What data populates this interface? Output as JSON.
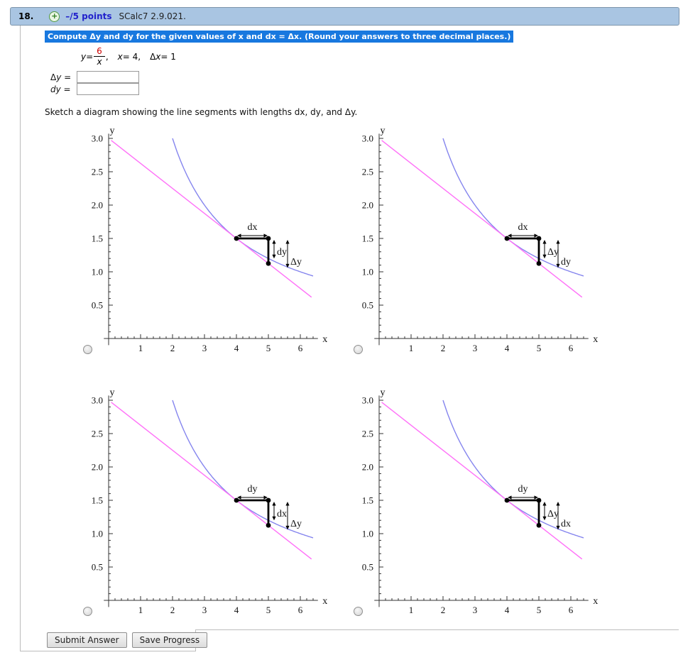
{
  "header": {
    "number": "18.",
    "plus_glyph": "+",
    "points": "–/5 points",
    "source": "SCalc7 2.9.021."
  },
  "instruction": "Compute Δy and dy for the given values of x and dx = Δx. (Round your answers to three decimal places.)",
  "equation": {
    "y": "y",
    "equals": " = ",
    "numerator": "6",
    "denominator": "x",
    "comma": ",",
    "x": "x",
    "x_value": " = 4,",
    "delta": "Δ",
    "dx": "x",
    "dx_value": " = 1",
    "numerator_color": "#cc0000"
  },
  "answers": [
    {
      "delta": "Δ",
      "variable": "y",
      "eq": " =",
      "value": ""
    },
    {
      "delta": "",
      "variable": "dy",
      "eq": " =",
      "value": ""
    }
  ],
  "sketch_prompt": "Sketch a diagram showing the line segments with lengths  dx, dy, and Δy.",
  "buttons": {
    "submit": "Submit Answer",
    "save": "Save Progress"
  },
  "colors": {
    "header_bg": "#a9c5e2",
    "highlight": "#1878df",
    "points_text": "#2222cc",
    "curve": "#8585ee",
    "tangent": "#ff70f8",
    "ink": "#000000"
  },
  "chart_data": {
    "type": "line",
    "description": "Four candidate diagrams of y = 6/x with its tangent line at (4, 1.5); identical geometry, different segment labels",
    "x_label": "x",
    "y_label": "y",
    "x_range": [
      0,
      6.5
    ],
    "y_range": [
      0,
      3.05
    ],
    "x_ticks": [
      1,
      2,
      3,
      4,
      5,
      6
    ],
    "y_ticks": [
      "0.5",
      "1.0",
      "1.5",
      "2.0",
      "2.5",
      "3.0"
    ],
    "grid": false,
    "series": [
      {
        "name": "curve y = 6/x",
        "kind": "reciprocal",
        "k": 6,
        "x_min": 2.0,
        "x_max": 6.4,
        "color": "#8585ee"
      },
      {
        "name": "tangent at x = 4",
        "kind": "linear",
        "slope": -0.375,
        "intercept": 3,
        "x_min": 0.08,
        "x_max": 6.35,
        "color": "#ff70f8"
      }
    ],
    "marked_points": [
      [
        4,
        1.5
      ],
      [
        5,
        1.5
      ],
      [
        5,
        1.125
      ]
    ],
    "segments": {
      "horizontal": {
        "from": [
          4,
          1.5
        ],
        "to": [
          5,
          1.5
        ]
      },
      "vertical": {
        "from": [
          5,
          1.5
        ],
        "to": [
          5,
          1.125
        ]
      },
      "inner_arrow_bottom_y": 1.2,
      "outer_arrow_bottom_y": 1.06
    },
    "options": [
      {
        "label_horizontal": "dx",
        "label_inner": "dy",
        "label_outer": "Δy"
      },
      {
        "label_horizontal": "dx",
        "label_inner": "Δy",
        "label_outer": "dy"
      },
      {
        "label_horizontal": "dy",
        "label_inner": "dx",
        "label_outer": "Δy"
      },
      {
        "label_horizontal": "dy",
        "label_inner": "Δy",
        "label_outer": "dx"
      }
    ]
  }
}
